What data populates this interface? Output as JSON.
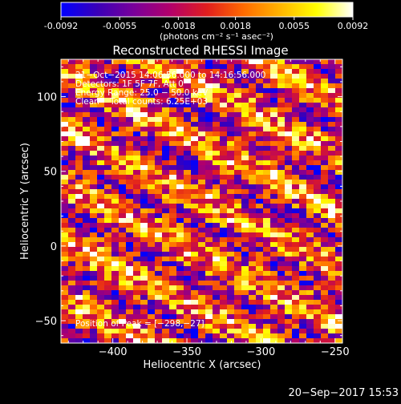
{
  "colorbar": {
    "ticks": [
      "-0.0092",
      "-0.0055",
      "-0.0018",
      "0.0018",
      "0.0055",
      "0.0092"
    ],
    "tick_values": [
      -0.0092,
      -0.0055,
      -0.0018,
      0.0018,
      0.0055,
      0.0092
    ],
    "range": [
      -0.0092,
      0.0092
    ],
    "colormap": [
      "#0000ff",
      "#3a00b8",
      "#7a009a",
      "#b3006a",
      "#e01e1e",
      "#ff6a00",
      "#ffb400",
      "#ffff00",
      "#ffffff"
    ],
    "unit_label": "(photons cm⁻² s⁻¹ asec⁻²)"
  },
  "chart_data": {
    "type": "heatmap",
    "title": "Reconstructed RHESSI Image",
    "xlabel": "Heliocentric X (arcsec)",
    "ylabel": "Heliocentric Y (arcsec)",
    "xlim": [
      -435,
      -245
    ],
    "ylim": [
      -65,
      125
    ],
    "xticks": [
      -400,
      -350,
      -300,
      -250
    ],
    "xtick_labels": [
      "−400",
      "−350",
      "−300",
      "−250"
    ],
    "yticks": [
      -50,
      0,
      50,
      100
    ],
    "ytick_labels": [
      "−50",
      "0",
      "50",
      "100"
    ],
    "grid": false,
    "annotations": {
      "time": "21−Oct−2015 14:06:56.000 to 14:16:56.000",
      "detectors": "Detectors: 1F 5F 7F, Att 0",
      "energy": "Energy Range: 25.0 − 50.0 keV",
      "method": "Clean    Total counts: 6.25E+03",
      "peak": "Position of Peak = [−298,−27]"
    },
    "peak_position": [
      -298,
      -27
    ],
    "total_counts": 6250
  },
  "footer": {
    "timestamp": "20−Sep−2017 15:53"
  }
}
